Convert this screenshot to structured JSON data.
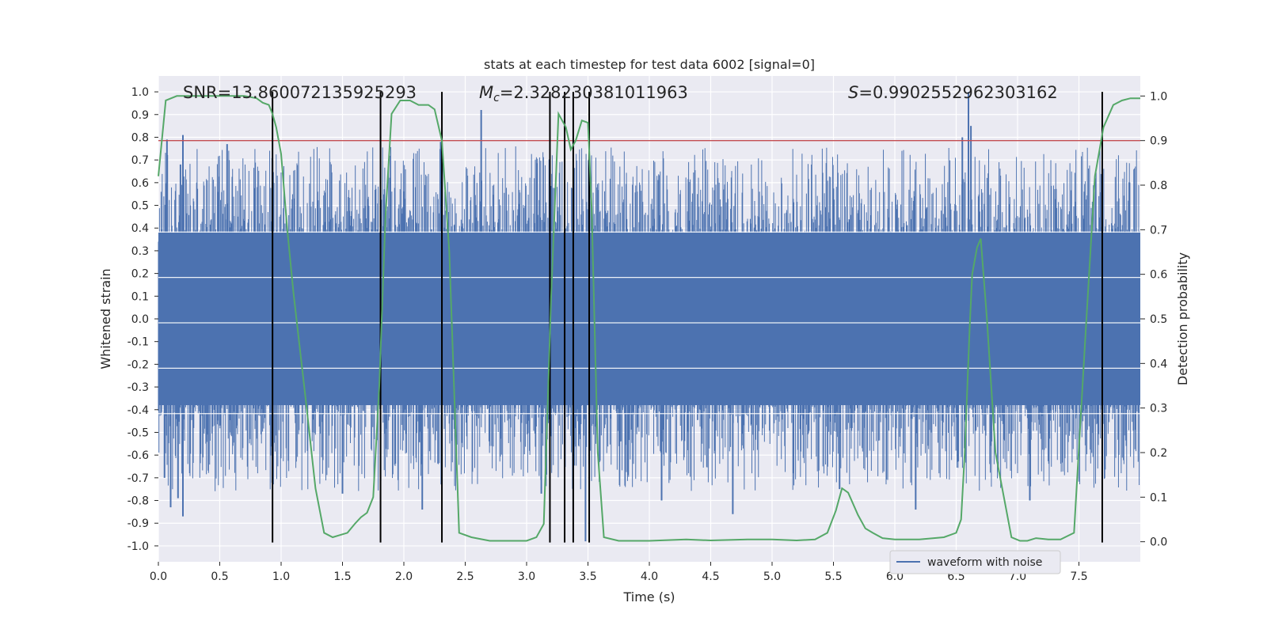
{
  "chart_data": {
    "type": "line",
    "title": "stats at each timestep for test data 6002 [signal=0]",
    "xlabel": "Time (s)",
    "ylabel_left": "Whitened strain",
    "ylabel_right": "Detection probability",
    "xlim": [
      0.0,
      8.0
    ],
    "ylim_left": [
      -1.07,
      1.07
    ],
    "ylim_right": [
      -0.045,
      1.045
    ],
    "x_ticks": [
      "0.0",
      "0.5",
      "1.0",
      "1.5",
      "2.0",
      "2.5",
      "3.0",
      "3.5",
      "4.0",
      "4.5",
      "5.0",
      "5.5",
      "6.0",
      "6.5",
      "7.0",
      "7.5"
    ],
    "y_ticks_left": [
      "1.0",
      "0.9",
      "0.8",
      "0.7",
      "0.6",
      "0.5",
      "0.4",
      "0.3",
      "0.2",
      "0.1",
      "0.0",
      "-0.1",
      "-0.2",
      "-0.3",
      "-0.4",
      "-0.5",
      "-0.6",
      "-0.7",
      "-0.8",
      "-0.9",
      "-1.0"
    ],
    "y_ticks_right": [
      "1.0",
      "0.9",
      "0.8",
      "0.7",
      "0.6",
      "0.5",
      "0.4",
      "0.3",
      "0.2",
      "0.1",
      "0.0"
    ],
    "grid": true,
    "legend_placement": "lower-right",
    "legend": [
      "waveform with noise"
    ],
    "annotations": {
      "snr": "SNR=13.860072135925293",
      "mc_symbol": "M",
      "mc_sub": "c",
      "mc_value": "=2.328230381011963",
      "s_symbol": "S",
      "s_value": "=0.9902552962303162"
    },
    "threshold": {
      "value": 0.9,
      "axis": "right",
      "color": "#c44e52"
    },
    "vertical_lines_x": [
      0.93,
      1.81,
      2.31,
      3.19,
      3.31,
      3.38,
      3.51,
      7.69
    ],
    "vertical_lines_span": [
      -0.985,
      1.0
    ],
    "noise_series": {
      "name": "waveform with noise",
      "color": "#4c72b0",
      "core_amplitude": 0.38,
      "peaks": [
        {
          "x": 0.05,
          "y": -0.7
        },
        {
          "x": 0.07,
          "y": 0.79
        },
        {
          "x": 0.1,
          "y": -0.83
        },
        {
          "x": 0.16,
          "y": -0.79
        },
        {
          "x": 0.18,
          "y": 0.68
        },
        {
          "x": 0.2,
          "y": -0.87
        },
        {
          "x": 0.2,
          "y": 0.81
        },
        {
          "x": 0.56,
          "y": 0.77
        },
        {
          "x": 0.93,
          "y": 0.7
        },
        {
          "x": 1.5,
          "y": -0.77
        },
        {
          "x": 2.15,
          "y": -0.84
        },
        {
          "x": 2.3,
          "y": 0.78
        },
        {
          "x": 2.63,
          "y": 0.92
        },
        {
          "x": 3.12,
          "y": -0.77
        },
        {
          "x": 3.38,
          "y": -0.84
        },
        {
          "x": 3.48,
          "y": -0.98
        },
        {
          "x": 4.1,
          "y": -0.8
        },
        {
          "x": 4.68,
          "y": -0.86
        },
        {
          "x": 5.55,
          "y": -0.75
        },
        {
          "x": 6.17,
          "y": -0.84
        },
        {
          "x": 6.55,
          "y": 0.8
        },
        {
          "x": 6.6,
          "y": 1.0
        },
        {
          "x": 6.62,
          "y": 0.85
        },
        {
          "x": 7.1,
          "y": -0.8
        }
      ]
    },
    "probability_series": {
      "name": "Detection probability",
      "color": "#55a868",
      "x": [
        0.0,
        0.06,
        0.15,
        0.3,
        0.5,
        0.7,
        0.8,
        0.85,
        0.9,
        0.93,
        0.96,
        1.0,
        1.05,
        1.1,
        1.2,
        1.28,
        1.35,
        1.42,
        1.48,
        1.54,
        1.6,
        1.65,
        1.7,
        1.75,
        1.8,
        1.85,
        1.9,
        1.97,
        2.05,
        2.12,
        2.2,
        2.25,
        2.31,
        2.37,
        2.45,
        2.55,
        2.7,
        2.85,
        3.0,
        3.08,
        3.14,
        3.2,
        3.26,
        3.32,
        3.36,
        3.4,
        3.45,
        3.5,
        3.53,
        3.58,
        3.63,
        3.75,
        4.0,
        4.3,
        4.5,
        4.8,
        5.0,
        5.2,
        5.35,
        5.45,
        5.52,
        5.57,
        5.62,
        5.7,
        5.76,
        5.82,
        5.9,
        6.0,
        6.2,
        6.4,
        6.5,
        6.54,
        6.57,
        6.61,
        6.63,
        6.67,
        6.7,
        6.75,
        6.82,
        6.95,
        7.02,
        7.08,
        7.15,
        7.25,
        7.35,
        7.46,
        7.55,
        7.63,
        7.7,
        7.78,
        7.85,
        7.92,
        8.0
      ],
      "y": [
        0.82,
        0.99,
        1.0,
        1.0,
        1.0,
        1.0,
        0.995,
        0.985,
        0.98,
        0.96,
        0.93,
        0.87,
        0.7,
        0.56,
        0.32,
        0.12,
        0.02,
        0.01,
        0.015,
        0.02,
        0.04,
        0.055,
        0.065,
        0.1,
        0.35,
        0.73,
        0.96,
        0.99,
        0.99,
        0.98,
        0.98,
        0.97,
        0.9,
        0.65,
        0.02,
        0.01,
        0.002,
        0.002,
        0.002,
        0.01,
        0.04,
        0.55,
        0.96,
        0.93,
        0.88,
        0.9,
        0.945,
        0.94,
        0.75,
        0.2,
        0.01,
        0.002,
        0.002,
        0.005,
        0.003,
        0.005,
        0.005,
        0.003,
        0.005,
        0.02,
        0.07,
        0.12,
        0.11,
        0.06,
        0.03,
        0.02,
        0.008,
        0.005,
        0.005,
        0.01,
        0.02,
        0.05,
        0.2,
        0.48,
        0.6,
        0.66,
        0.68,
        0.5,
        0.2,
        0.01,
        0.002,
        0.002,
        0.008,
        0.005,
        0.005,
        0.02,
        0.45,
        0.82,
        0.93,
        0.98,
        0.99,
        0.995,
        0.995
      ]
    }
  }
}
